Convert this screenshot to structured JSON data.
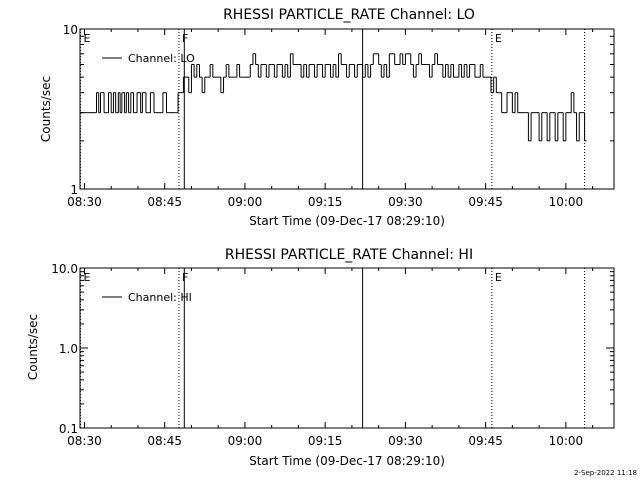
{
  "footer": {
    "timestamp": "2-Sep-2022 11:18"
  },
  "chart_data": [
    {
      "type": "line",
      "title": "RHESSI PARTICLE_RATE Channel: LO",
      "xlabel": "Start Time (09-Dec-17 08:29:10)",
      "ylabel": "Counts/sec",
      "y_scale": "log",
      "ylim": [
        1,
        10
      ],
      "y_ticks": [
        1,
        10
      ],
      "y_tick_labels": [
        "1",
        "10"
      ],
      "xlim": [
        "08:29:10",
        "10:09:00"
      ],
      "x_ticks": [
        "08:30",
        "08:45",
        "09:00",
        "09:15",
        "09:30",
        "09:45",
        "10:00"
      ],
      "legend": {
        "label": "Channel: LO",
        "position": "top-left"
      },
      "markers": [
        {
          "label": "E",
          "time": "08:29:15",
          "style": "dotted"
        },
        {
          "label": "F",
          "time": "08:47:40",
          "style": "dotted"
        },
        {
          "label": "",
          "time": "08:48:40",
          "style": "solid"
        },
        {
          "label": "",
          "time": "09:22:00",
          "style": "solid"
        },
        {
          "label": "E",
          "time": "09:46:10",
          "style": "dotted"
        },
        {
          "label": "",
          "time": "10:03:30",
          "style": "dotted"
        }
      ],
      "series": [
        {
          "name": "Channel: LO",
          "x": [
            "08:29:10",
            "08:32:00",
            "08:32:15",
            "08:32:40",
            "08:33:00",
            "08:33:40",
            "08:34:00",
            "08:34:30",
            "08:35:00",
            "08:35:25",
            "08:35:50",
            "08:36:20",
            "08:36:40",
            "08:37:00",
            "08:37:30",
            "08:37:50",
            "08:38:15",
            "08:38:40",
            "08:39:10",
            "08:39:30",
            "08:39:50",
            "08:40:30",
            "08:40:50",
            "08:41:30",
            "08:41:50",
            "08:42:20",
            "08:43:00",
            "08:43:20",
            "08:43:50",
            "08:44:20",
            "08:44:40",
            "08:45:20",
            "08:45:40",
            "08:46:40",
            "08:47:00",
            "08:47:30",
            "08:48:00",
            "08:48:30",
            "08:49:00",
            "08:49:30",
            "08:50:00",
            "08:50:30",
            "08:51:00",
            "08:51:30",
            "08:52:00",
            "08:52:30",
            "08:53:00",
            "08:53:30",
            "08:54:00",
            "08:55:00",
            "08:55:30",
            "08:56:00",
            "08:56:30",
            "08:57:00",
            "08:57:30",
            "08:58:00",
            "08:58:30",
            "08:59:00",
            "08:59:30",
            "09:00:00",
            "09:01:00",
            "09:01:30",
            "09:02:00",
            "09:02:30",
            "09:03:00",
            "09:04:00",
            "09:04:30",
            "09:05:00",
            "09:05:30",
            "09:06:00",
            "09:07:00",
            "09:07:30",
            "09:08:00",
            "09:08:30",
            "09:09:00",
            "09:10:00",
            "09:10:30",
            "09:11:00",
            "09:11:30",
            "09:12:00",
            "09:13:00",
            "09:13:30",
            "09:14:00",
            "09:14:30",
            "09:15:00",
            "09:16:00",
            "09:16:30",
            "09:17:00",
            "09:17:30",
            "09:18:00",
            "09:19:00",
            "09:19:30",
            "09:20:00",
            "09:20:30",
            "09:21:00",
            "09:22:00",
            "09:22:30",
            "09:23:00",
            "09:23:30",
            "09:24:00",
            "09:25:00",
            "09:25:30",
            "09:26:00",
            "09:26:30",
            "09:27:00",
            "09:28:00",
            "09:28:30",
            "09:29:00",
            "09:29:30",
            "09:30:00",
            "09:31:00",
            "09:31:30",
            "09:32:00",
            "09:32:30",
            "09:33:00",
            "09:34:00",
            "09:34:30",
            "09:35:00",
            "09:35:30",
            "09:36:00",
            "09:37:00",
            "09:37:30",
            "09:38:00",
            "09:38:30",
            "09:39:00",
            "09:40:00",
            "09:40:30",
            "09:41:00",
            "09:41:30",
            "09:42:00",
            "09:43:00",
            "09:43:30",
            "09:44:00",
            "09:44:30",
            "09:45:00",
            "09:46:00",
            "09:46:30",
            "09:47:00",
            "09:47:30",
            "09:48:00",
            "09:49:00",
            "09:49:30",
            "09:50:00",
            "09:50:30",
            "09:51:00",
            "09:52:00",
            "09:52:30",
            "09:53:00",
            "09:53:30",
            "09:54:00",
            "09:55:00",
            "09:55:30",
            "09:56:00",
            "09:56:30",
            "09:57:00",
            "09:58:00",
            "09:58:30",
            "09:59:00",
            "09:59:30",
            "10:00:00",
            "10:01:00",
            "10:01:30",
            "10:02:00",
            "10:02:30",
            "10:03:00",
            "10:03:30"
          ],
          "values": [
            3,
            3,
            4,
            3,
            4,
            3,
            3,
            4,
            3,
            4,
            3,
            4,
            3,
            4,
            3,
            4,
            3,
            4,
            3,
            3,
            4,
            3,
            4,
            3,
            3,
            4,
            3,
            3,
            3,
            3,
            4,
            3,
            3,
            3,
            3,
            4,
            4,
            5,
            5,
            4,
            6,
            5,
            6,
            5,
            4,
            5,
            5,
            6,
            5,
            5,
            4,
            5,
            6,
            5,
            5,
            5,
            6,
            5,
            5,
            5,
            6,
            7,
            6,
            5,
            6,
            5,
            6,
            6,
            5,
            6,
            5,
            6,
            5,
            7,
            6,
            6,
            5,
            6,
            5,
            6,
            5,
            6,
            6,
            5,
            6,
            5,
            6,
            5,
            7,
            6,
            5,
            6,
            6,
            5,
            6,
            5,
            6,
            5,
            6,
            7,
            6,
            5,
            6,
            5,
            7,
            6,
            6,
            7,
            6,
            7,
            6,
            5,
            6,
            7,
            6,
            6,
            5,
            6,
            7,
            6,
            5,
            6,
            5,
            6,
            5,
            6,
            5,
            6,
            5,
            6,
            5,
            5,
            6,
            5,
            5,
            4,
            5,
            4,
            4,
            3,
            4,
            4,
            3,
            4,
            3,
            3,
            3,
            2,
            3,
            3,
            2,
            3,
            3,
            2,
            3,
            2,
            3,
            3,
            2,
            3,
            4,
            3,
            2,
            3,
            3,
            2
          ]
        }
      ]
    },
    {
      "type": "line",
      "title": "RHESSI PARTICLE_RATE Channel: HI",
      "xlabel": "Start Time (09-Dec-17 08:29:10)",
      "ylabel": "Counts/sec",
      "y_scale": "log",
      "ylim": [
        0.1,
        10
      ],
      "y_ticks": [
        0.1,
        1,
        10
      ],
      "y_tick_labels": [
        "0.1",
        "1.0",
        "10.0"
      ],
      "xlim": [
        "08:29:10",
        "10:09:00"
      ],
      "x_ticks": [
        "08:30",
        "08:45",
        "09:00",
        "09:15",
        "09:30",
        "09:45",
        "10:00"
      ],
      "legend": {
        "label": "Channel: HI",
        "position": "top-left"
      },
      "markers": [
        {
          "label": "E",
          "time": "08:29:15",
          "style": "dotted"
        },
        {
          "label": "F",
          "time": "08:47:40",
          "style": "dotted"
        },
        {
          "label": "",
          "time": "08:48:40",
          "style": "solid"
        },
        {
          "label": "",
          "time": "09:22:00",
          "style": "solid"
        },
        {
          "label": "E",
          "time": "09:46:10",
          "style": "dotted"
        },
        {
          "label": "",
          "time": "10:03:30",
          "style": "dotted"
        }
      ],
      "series": [
        {
          "name": "Channel: HI",
          "x": [],
          "values": []
        }
      ]
    }
  ]
}
